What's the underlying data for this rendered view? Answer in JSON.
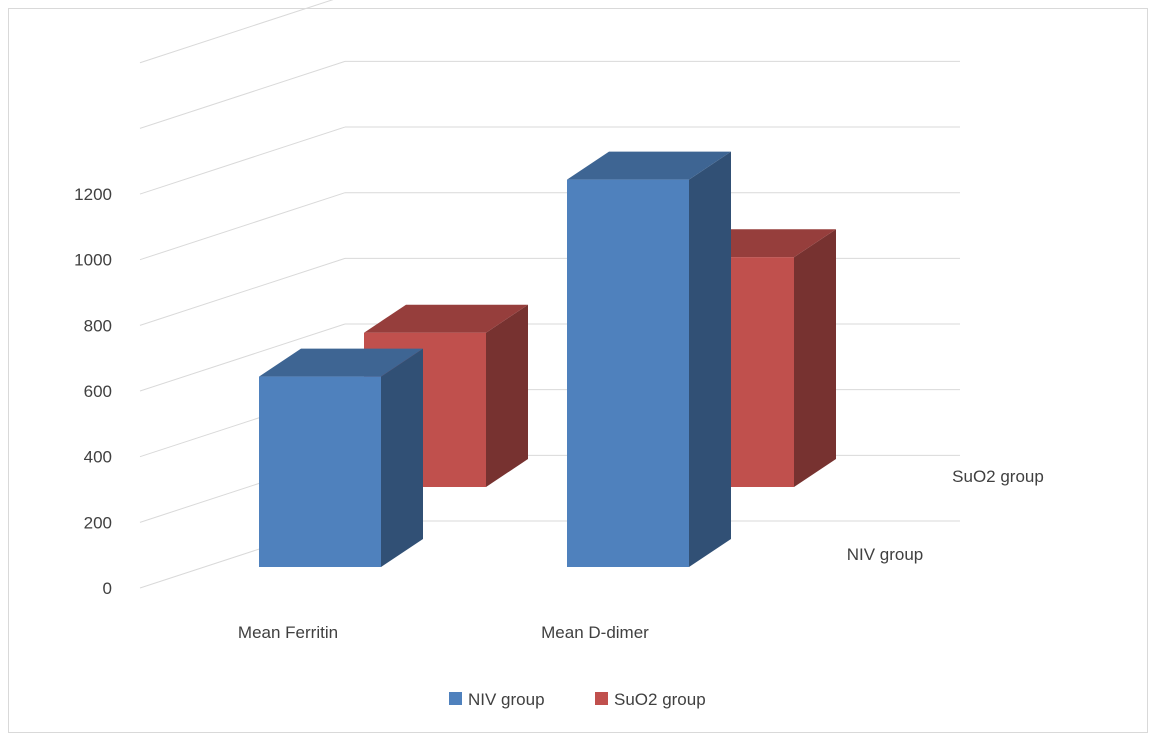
{
  "chart_data": {
    "type": "bar",
    "title": "",
    "xlabel": "",
    "ylabel": "",
    "categories": [
      "Mean Ferritin",
      "Mean D-dimer"
    ],
    "series": [
      {
        "name": "NIV group",
        "values": [
          580,
          1180
        ],
        "color": "#4f81bd"
      },
      {
        "name": "SuO2 group",
        "values": [
          470,
          700
        ],
        "color": "#c0504d"
      }
    ],
    "ylim": [
      0,
      1200
    ],
    "yticks": [
      "0",
      "200",
      "400",
      "600",
      "800",
      "1000",
      "1200"
    ],
    "grid": true,
    "legend_position": "bottom",
    "depth_labels": [
      "NIV group",
      "SuO2 group"
    ],
    "style": "3d-clustered-column"
  }
}
